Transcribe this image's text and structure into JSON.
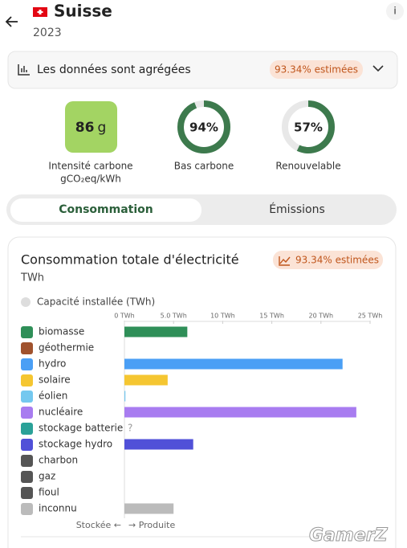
{
  "header": {
    "title": "Suisse",
    "subtitle": "2023",
    "info": "i"
  },
  "accordion": {
    "label": "Les données sont agrégées",
    "badge": "93.34% estimées"
  },
  "metrics": [
    {
      "value": 86,
      "unit": "g",
      "label": "Intensité carbone",
      "sublabel": "gCO₂eq/kWh",
      "color": "#a3d463"
    },
    {
      "value": 94,
      "value_label": "94%",
      "label": "Bas carbone",
      "color": "#3d7a4d"
    },
    {
      "value": 57,
      "value_label": "57%",
      "label": "Renouvelable",
      "color": "#3d7a4d"
    }
  ],
  "tabs": [
    "Consommation",
    "Émissions"
  ],
  "chart_data": {
    "type": "bar",
    "title": "Consommation totale d'électricité",
    "subtitle": "TWh",
    "badge": "93.34% estimées",
    "legend": "Capacité installée (TWh)",
    "categories": [
      "biomasse",
      "géothermie",
      "hydro",
      "solaire",
      "éolien",
      "nucléaire",
      "stockage batterie",
      "stockage hydro",
      "charbon",
      "gaz",
      "fioul",
      "inconnu"
    ],
    "values": [
      6.4,
      0,
      22.2,
      4.4,
      0.1,
      23.6,
      null,
      7.0,
      0,
      0,
      0,
      5.0
    ],
    "value_labels": [
      null,
      null,
      null,
      null,
      null,
      null,
      "?",
      null,
      null,
      null,
      null,
      null
    ],
    "colors": [
      "#2f8f58",
      "#a0522d",
      "#4a9ff5",
      "#f5c631",
      "#74c8ef",
      "#a87cf0",
      "#2aa198",
      "#5050d8",
      "#555555",
      "#555555",
      "#555555",
      "#bbbbbb"
    ],
    "xlim": [
      0,
      25
    ],
    "xticks": [
      {
        "value": 0,
        "label": "0 TWh"
      },
      {
        "value": 5,
        "label": "5.0 TWh"
      },
      {
        "value": 10,
        "label": "10 TWh"
      },
      {
        "value": 15,
        "label": "15 TWh"
      },
      {
        "value": 20,
        "label": "20 TWh"
      },
      {
        "value": 25,
        "label": "25 TWh"
      }
    ],
    "axis_left": "Stockée ←",
    "axis_right": "→ Produite"
  },
  "watermark": "GamerZ"
}
